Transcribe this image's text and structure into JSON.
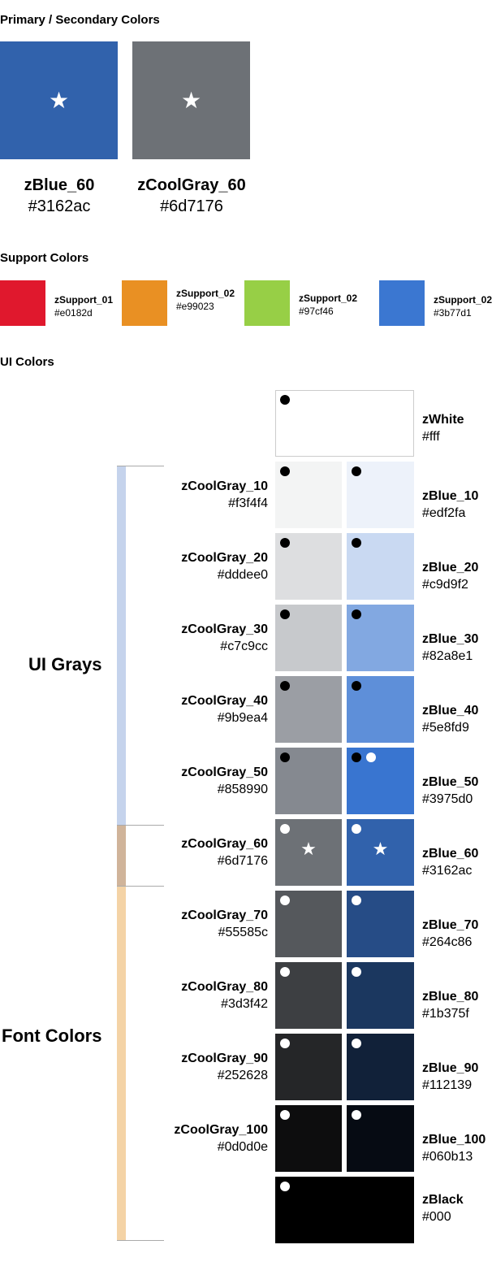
{
  "primary_section": {
    "title": "Primary / Secondary Colors",
    "swatches": [
      {
        "name": "zBlue_60",
        "hex": "#3162ac",
        "icon": "star-icon"
      },
      {
        "name": "zCoolGray_60",
        "hex": "#6d7176",
        "icon": "star-icon"
      }
    ]
  },
  "support_section": {
    "title": "Support Colors",
    "swatches": [
      {
        "name": "zSupport_01",
        "hex": "#e0182d"
      },
      {
        "name": "zSupport_02",
        "hex": "#e99023"
      },
      {
        "name": "zSupport_02",
        "hex": "#97cf46"
      },
      {
        "name": "zSupport_02",
        "hex": "#3b77d1"
      }
    ]
  },
  "ui_section": {
    "title": "UI Colors",
    "groups": {
      "ui_grays": "UI Grays",
      "font_colors": "Font Colors"
    },
    "group_colors": {
      "ui_grays": "#c5d3ec",
      "overlap": "#d0b49a",
      "font_colors": "#f4d3a6"
    },
    "white": {
      "name": "zWhite",
      "hex": "#fff",
      "dots": [
        "black"
      ]
    },
    "black": {
      "name": "zBlack",
      "hex": "#000",
      "dots": [
        "white"
      ]
    },
    "rows": [
      {
        "gray": {
          "name": "zCoolGray_10",
          "hex": "#f3f4f4",
          "dots": [
            "black"
          ]
        },
        "blue": {
          "name": "zBlue_10",
          "hex": "#edf2fa",
          "dots": [
            "black"
          ]
        }
      },
      {
        "gray": {
          "name": "zCoolGray_20",
          "hex": "#dddee0",
          "dots": [
            "black"
          ]
        },
        "blue": {
          "name": "zBlue_20",
          "hex": "#c9d9f2",
          "dots": [
            "black"
          ]
        }
      },
      {
        "gray": {
          "name": "zCoolGray_30",
          "hex": "#c7c9cc",
          "dots": [
            "black"
          ]
        },
        "blue": {
          "name": "zBlue_30",
          "hex": "#82a8e1",
          "dots": [
            "black"
          ]
        }
      },
      {
        "gray": {
          "name": "zCoolGray_40",
          "hex": "#9b9ea4",
          "dots": [
            "black"
          ]
        },
        "blue": {
          "name": "zBlue_40",
          "hex": "#5e8fd9",
          "dots": [
            "black"
          ]
        }
      },
      {
        "gray": {
          "name": "zCoolGray_50",
          "hex": "#858990",
          "dots": [
            "black"
          ]
        },
        "blue": {
          "name": "zBlue_50",
          "hex": "#3975d0",
          "dots": [
            "black",
            "white"
          ]
        }
      },
      {
        "gray": {
          "name": "zCoolGray_60",
          "hex": "#6d7176",
          "dots": [
            "white"
          ],
          "star": true
        },
        "blue": {
          "name": "zBlue_60",
          "hex": "#3162ac",
          "dots": [
            "white"
          ],
          "star": true
        }
      },
      {
        "gray": {
          "name": "zCoolGray_70",
          "hex": "#55585c",
          "dots": [
            "white"
          ]
        },
        "blue": {
          "name": "zBlue_70",
          "hex": "#264c86",
          "dots": [
            "white"
          ]
        }
      },
      {
        "gray": {
          "name": "zCoolGray_80",
          "hex": "#3d3f42",
          "dots": [
            "white"
          ]
        },
        "blue": {
          "name": "zBlue_80",
          "hex": "#1b375f",
          "dots": [
            "white"
          ]
        }
      },
      {
        "gray": {
          "name": "zCoolGray_90",
          "hex": "#252628",
          "dots": [
            "white"
          ]
        },
        "blue": {
          "name": "zBlue_90",
          "hex": "#112139",
          "dots": [
            "white"
          ]
        }
      },
      {
        "gray": {
          "name": "zCoolGray_100",
          "hex": "#0d0d0e",
          "dots": [
            "white"
          ]
        },
        "blue": {
          "name": "zBlue_100",
          "hex": "#060b13",
          "dots": [
            "white"
          ]
        }
      }
    ]
  }
}
